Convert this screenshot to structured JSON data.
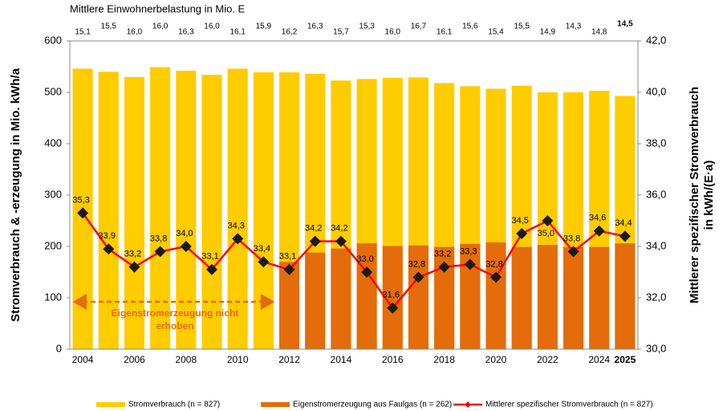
{
  "chart_data": {
    "type": "bar",
    "top_row": {
      "title": "Mittlere Einwohnerbelastung in Mio. E",
      "values": [
        15.1,
        15.5,
        16.0,
        16.0,
        16.3,
        16.0,
        16.1,
        15.9,
        16.2,
        16.3,
        15.7,
        15.3,
        16.0,
        16.7,
        16.1,
        15.6,
        15.4,
        15.5,
        14.9,
        14.3,
        14.8,
        14.5
      ],
      "value_labels": [
        "15,1",
        "15,5",
        "16,0",
        "16,0",
        "16,3",
        "16,0",
        "16,1",
        "15,9",
        "16,2",
        "16,3",
        "15,7",
        "15,3",
        "16,0",
        "16,7",
        "16,1",
        "15,6",
        "15,4",
        "15,5",
        "14,9",
        "14,3",
        "14,8",
        "14,5"
      ]
    },
    "categories": [
      "2004",
      null,
      "2006",
      null,
      "2008",
      null,
      "2010",
      null,
      "2012",
      null,
      "2014",
      null,
      "2016",
      null,
      "2018",
      null,
      "2020",
      null,
      "2022",
      null,
      "2024",
      "2025"
    ],
    "y_label": "Stromverbrauch  & -erzeugung in Mio. kWh/a",
    "y2_label": [
      "Mittlerer spezifischer Stromverbrauch",
      "in kWh/(E·a)"
    ],
    "ylim": [
      0,
      600
    ],
    "yticks": [
      0,
      100,
      200,
      300,
      400,
      500,
      600
    ],
    "y2lim": [
      30,
      42
    ],
    "y2ticks": [
      {
        "value": 30,
        "label": "30,0"
      },
      {
        "value": 32,
        "label": "32,0"
      },
      {
        "value": 34,
        "label": "34,0"
      },
      {
        "value": 36,
        "label": "36,0"
      },
      {
        "value": 38,
        "label": "38,0"
      },
      {
        "value": 40,
        "label": "40,0"
      },
      {
        "value": 42,
        "label": "42,0"
      }
    ],
    "annotation": [
      "Eigenstromerzeugung nicht",
      "erhoben"
    ],
    "series": [
      {
        "name": "Stromverbrauch (n = 827)",
        "type": "bar",
        "color": "#FFCC00",
        "values": [
          546,
          540,
          530,
          549,
          542,
          534,
          546,
          539,
          539,
          536,
          523,
          526,
          528,
          529,
          518,
          512,
          507,
          513,
          500,
          500,
          503,
          493
        ]
      },
      {
        "name": "Eigenstromerzeugung aus Faulgas (n = 262)",
        "type": "bar",
        "color": "#E46C0A",
        "values": [
          null,
          null,
          null,
          null,
          null,
          null,
          null,
          null,
          170,
          188,
          196,
          206,
          201,
          202,
          199,
          205,
          208,
          199,
          203,
          199,
          199,
          206
        ]
      },
      {
        "name": "Mittlerer spezifischer Stromverbrauch (n = 827)",
        "type": "line",
        "axis": "y2",
        "color": "#FF0000",
        "marker_color": "#1a1a1a",
        "values": [
          35.3,
          33.9,
          33.2,
          33.8,
          34.0,
          33.1,
          34.3,
          33.4,
          33.1,
          34.2,
          34.2,
          33.0,
          31.6,
          32.8,
          33.2,
          33.3,
          32.8,
          34.5,
          35.0,
          33.8,
          34.6,
          34.4
        ],
        "value_labels": [
          "35,3",
          "33,9",
          "33,2",
          "33,8",
          "34,0",
          "33,1",
          "34,3",
          "33,4",
          "33,1",
          "34,2",
          "34,2",
          "33,0",
          "31,6",
          "32,8",
          "33,2",
          "33,3",
          "32,8",
          "34,5",
          "35,0",
          "33,8",
          "34,6",
          "34,4"
        ]
      }
    ]
  }
}
